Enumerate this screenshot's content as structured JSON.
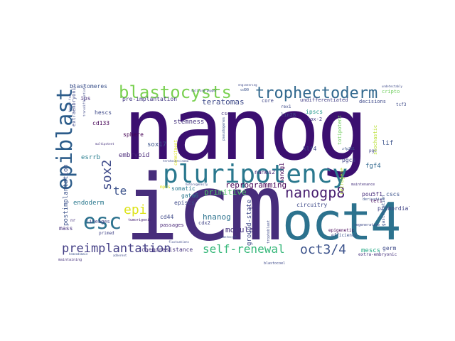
{
  "words": [
    {
      "text": "nanog",
      "color": "#3b0f70"
    },
    {
      "text": "icm",
      "color": "#472d7b"
    },
    {
      "text": "oct4",
      "color": "#2c728e"
    },
    {
      "text": "pluripotency",
      "color": "#2a788e"
    },
    {
      "text": "blastocysts",
      "color": "#7ad151"
    },
    {
      "text": "trophectoderm",
      "color": "#31688e"
    },
    {
      "text": "epiblast",
      "color": "#2c5c8a"
    },
    {
      "text": "esc",
      "color": "#2c728e"
    },
    {
      "text": "epi",
      "color": "#dde318"
    },
    {
      "text": "te",
      "color": "#3b528b"
    },
    {
      "text": "sox2",
      "color": "#3e4a89"
    },
    {
      "text": "nanogp8",
      "color": "#481f70"
    },
    {
      "text": "oct3/4",
      "color": "#3b528b"
    },
    {
      "text": "preimplantation",
      "color": "#433e85"
    },
    {
      "text": "self-renewal",
      "color": "#35b779"
    },
    {
      "text": "reprogramming",
      "color": "#440154"
    },
    {
      "text": "hnanog",
      "color": "#2c728e"
    },
    {
      "text": "morula",
      "color": "#46327e"
    },
    {
      "text": "primitive",
      "color": "#52c569"
    },
    {
      "text": "teratomas",
      "color": "#3e4a89"
    },
    {
      "text": "stemness",
      "color": "#46337e"
    },
    {
      "text": "embryoid",
      "color": "#482878"
    },
    {
      "text": "sox17",
      "color": "#3b528b"
    },
    {
      "text": "endoderm",
      "color": "#2a788e"
    },
    {
      "text": "esrrb",
      "color": "#287d8e"
    },
    {
      "text": "cd133",
      "color": "#440154"
    },
    {
      "text": "hescs",
      "color": "#3e4a89"
    },
    {
      "text": "blastomeres",
      "color": "#3b528b"
    },
    {
      "text": "ips",
      "color": "#472c7a"
    },
    {
      "text": "pre-implantation",
      "color": "#443983"
    },
    {
      "text": "sphere",
      "color": "#440154"
    },
    {
      "text": "mass",
      "color": "#46327e"
    },
    {
      "text": "postimplantation",
      "color": "#3b528b"
    },
    {
      "text": "lineages",
      "color": "#414487"
    },
    {
      "text": "gata6",
      "color": "#2a788e"
    },
    {
      "text": "episcs",
      "color": "#3e4a89"
    },
    {
      "text": "cd44",
      "color": "#3e4a89"
    },
    {
      "text": "passages",
      "color": "#482677"
    },
    {
      "text": "somatic",
      "color": "#2a788e"
    },
    {
      "text": "cdx2",
      "color": "#414487"
    },
    {
      "text": "ground-state",
      "color": "#3e4a89"
    },
    {
      "text": "chemoresistance",
      "color": "#46327e"
    },
    {
      "text": "mescs",
      "color": "#22a884"
    },
    {
      "text": "germ",
      "color": "#3e4a89"
    },
    {
      "text": "primordial",
      "color": "#414487"
    },
    {
      "text": "tet1",
      "color": "#450559"
    },
    {
      "text": "epigenetic",
      "color": "#440154"
    },
    {
      "text": "circuitry",
      "color": "#3e4a89"
    },
    {
      "text": "pou5f1",
      "color": "#472d7b"
    },
    {
      "text": "cscs",
      "color": "#3b528b"
    },
    {
      "text": "fgf4",
      "color": "#31688e"
    },
    {
      "text": "lif",
      "color": "#3b528b"
    },
    {
      "text": "pgcs",
      "color": "#414487"
    },
    {
      "text": "klf4",
      "color": "#3e4a89"
    },
    {
      "text": "sox-2",
      "color": "#443a83"
    },
    {
      "text": "ipscs",
      "color": "#1f988b"
    },
    {
      "text": "nanog1",
      "color": "#440154"
    },
    {
      "text": "nanos2",
      "color": "#482878"
    },
    {
      "text": "lin28",
      "color": "#3e4a89"
    },
    {
      "text": "core",
      "color": "#404688"
    },
    {
      "text": "undifferentiated",
      "color": "#433e85"
    },
    {
      "text": "decisions",
      "color": "#3e4a89"
    },
    {
      "text": "cripto",
      "color": "#6ccd5a"
    },
    {
      "text": "csc",
      "color": "#46327e"
    },
    {
      "text": "totipotent",
      "color": "#6ccd5a"
    },
    {
      "text": "retrogene",
      "color": "#b5de2b"
    },
    {
      "text": "stochastic",
      "color": "#b5de2b"
    },
    {
      "text": "extraembryonic",
      "color": "#3e4a89"
    },
    {
      "text": "commitment",
      "color": "#dde318"
    },
    {
      "text": "mpcs",
      "color": "#dde318"
    },
    {
      "text": "primed",
      "color": "#414487"
    },
    {
      "text": "efficiency",
      "color": "#3b528b"
    },
    {
      "text": "extra-embryonic",
      "color": "#46327e"
    },
    {
      "text": "tumorigenic",
      "color": "#482475"
    },
    {
      "text": "pgc",
      "color": "#404688"
    },
    {
      "text": "rex1",
      "color": "#3e4a89"
    },
    {
      "text": "derivation",
      "color": "#3b528b"
    },
    {
      "text": "maintenance",
      "color": "#46327e"
    },
    {
      "text": "regenerative",
      "color": "#3e4a89"
    },
    {
      "text": "blastocoel",
      "color": "#3e4a89"
    },
    {
      "text": "gastrulation",
      "color": "#3b528b"
    },
    {
      "text": "tcf3",
      "color": "#3e4a89"
    },
    {
      "text": "trophoblast",
      "color": "#3e4a89"
    },
    {
      "text": "zfp281",
      "color": "#3b528b"
    },
    {
      "text": "foxd3",
      "color": "#46327e"
    },
    {
      "text": "nr",
      "color": "#46327e"
    },
    {
      "text": "fluctuations",
      "color": "#3e4a89"
    },
    {
      "text": "pseudogenes",
      "color": "#3b528b"
    },
    {
      "text": "cd90",
      "color": "#3b528b"
    },
    {
      "text": "salt-and-pepper",
      "color": "#3e4a89"
    },
    {
      "text": "teratocarcinoma",
      "color": "#3e4a89"
    },
    {
      "text": "transdifferentiation",
      "color": "#3e4a89"
    },
    {
      "text": "multipotent",
      "color": "#46327e"
    },
    {
      "text": "heterogeneity",
      "color": "#3e4a89"
    },
    {
      "text": "blastocyst",
      "color": "#3b528b"
    },
    {
      "text": "feeder-free",
      "color": "#3e4a89"
    },
    {
      "text": "maintaining",
      "color": "#46327e"
    },
    {
      "text": "homeodomain",
      "color": "#3b528b"
    },
    {
      "text": "adherent",
      "color": "#3e4a89"
    },
    {
      "text": "engineering",
      "color": "#3e4a89"
    },
    {
      "text": "undetectably",
      "color": "#3e4a89"
    }
  ]
}
